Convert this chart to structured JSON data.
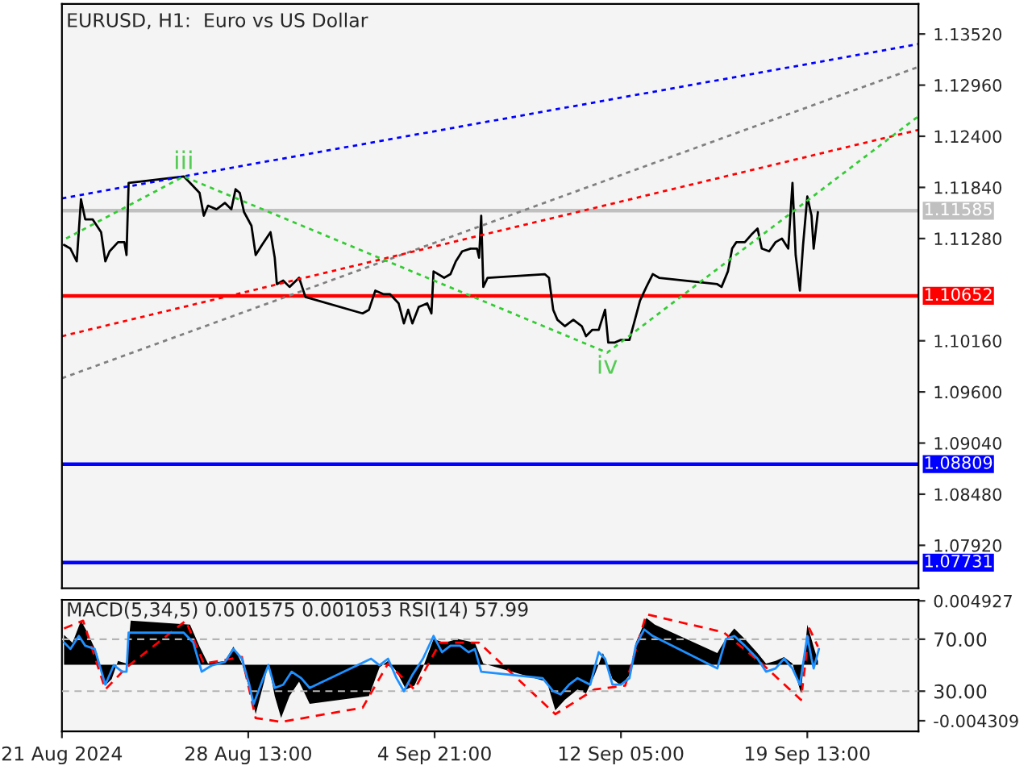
{
  "chart_data": [
    {
      "type": "line",
      "title": "EURUSD, H1:  Euro vs US Dollar",
      "tick_labels": "y",
      "xlim": [
        "2024-08-21T05:00",
        "2024-09-23T22:00"
      ],
      "ylim": [
        1.0745,
        1.1385
      ],
      "yticks": [
        {
          "value": 1.1352,
          "label": "1.13520"
        },
        {
          "value": 1.1296,
          "label": "1.12960"
        },
        {
          "value": 1.124,
          "label": "1.12400"
        },
        {
          "value": 1.1184,
          "label": "1.11840"
        },
        {
          "value": 1.1128,
          "label": "1.11280"
        },
        {
          "value": 1.1016,
          "label": "1.10160"
        },
        {
          "value": 1.096,
          "label": "1.09600"
        },
        {
          "value": 1.0904,
          "label": "1.09040"
        },
        {
          "value": 1.0848,
          "label": "1.08480"
        },
        {
          "value": 1.0792,
          "label": "1.07920"
        }
      ],
      "series": [
        {
          "color": "#000000",
          "line_style": "solid",
          "x": [
            "2024-08-21T07:00",
            "2024-08-21T13:00",
            "2024-08-21T19:00",
            "2024-08-21T23:00",
            "2024-08-22T03:00",
            "2024-08-22T10:00",
            "2024-08-22T14:00",
            "2024-08-22T18:00",
            "2024-08-22T22:00",
            "2024-08-23T02:00",
            "2024-08-23T10:00",
            "2024-08-23T16:00",
            "2024-08-23T18:00",
            "2024-08-23T20:00",
            "2024-08-26T00:00",
            "2024-08-26T06:00",
            "2024-08-26T15:00",
            "2024-08-26T19:00",
            "2024-08-26T23:00",
            "2024-08-27T07:00",
            "2024-08-27T15:00",
            "2024-08-27T21:00",
            "2024-08-28T01:00",
            "2024-08-28T05:00",
            "2024-08-28T09:00",
            "2024-08-28T16:00",
            "2024-08-28T20:00",
            "2024-08-29T02:00",
            "2024-08-29T10:00",
            "2024-08-29T14:00",
            "2024-08-29T16:00",
            "2024-08-29T22:00",
            "2024-08-30T04:00",
            "2024-08-30T13:00",
            "2024-08-30T19:00",
            "2024-09-02T01:00",
            "2024-09-02T07:00",
            "2024-09-02T13:00",
            "2024-09-02T21:00",
            "2024-09-03T03:00",
            "2024-09-03T11:00",
            "2024-09-03T16:00",
            "2024-09-03T20:00",
            "2024-09-04T00:00",
            "2024-09-04T06:00",
            "2024-09-04T14:00",
            "2024-09-04T18:00",
            "2024-09-04T20:00",
            "2024-09-05T06:00",
            "2024-09-05T12:00",
            "2024-09-05T17:00",
            "2024-09-05T23:00",
            "2024-09-06T07:00",
            "2024-09-06T13:00",
            "2024-09-06T15:00",
            "2024-09-06T17:00",
            "2024-09-06T19:00",
            "2024-09-06T23:00",
            "2024-09-09T05:00",
            "2024-09-09T09:00",
            "2024-09-09T13:00",
            "2024-09-09T17:00",
            "2024-09-10T00:00",
            "2024-09-10T08:00",
            "2024-09-10T16:00",
            "2024-09-10T20:00",
            "2024-09-11T02:00",
            "2024-09-11T08:00",
            "2024-09-11T14:00",
            "2024-09-11T17:00",
            "2024-09-11T23:00",
            "2024-09-12T05:00",
            "2024-09-12T13:00",
            "2024-09-12T17:00",
            "2024-09-12T23:00",
            "2024-09-13T05:00",
            "2024-09-13T11:00",
            "2024-09-13T17:00",
            "2024-09-16T00:00",
            "2024-09-16T04:00",
            "2024-09-16T10:00",
            "2024-09-16T14:00",
            "2024-09-16T18:00",
            "2024-09-17T02:00",
            "2024-09-17T08:00",
            "2024-09-17T14:00",
            "2024-09-17T18:00",
            "2024-09-18T01:00",
            "2024-09-18T07:00",
            "2024-09-18T13:00",
            "2024-09-18T19:00",
            "2024-09-18T23:00",
            "2024-09-19T02:00",
            "2024-09-19T06:00",
            "2024-09-19T09:00",
            "2024-09-19T13:00",
            "2024-09-19T17:00",
            "2024-09-19T19:00",
            "2024-09-19T23:00"
          ],
          "values": [
            1.1121,
            1.1117,
            1.1103,
            1.1171,
            1.1149,
            1.1149,
            1.1142,
            1.1135,
            1.1103,
            1.1114,
            1.1124,
            1.1124,
            1.111,
            1.1189,
            1.1196,
            1.1189,
            1.1178,
            1.1153,
            1.1164,
            1.116,
            1.1167,
            1.116,
            1.1182,
            1.1178,
            1.1157,
            1.1142,
            1.111,
            1.1121,
            1.1135,
            1.1107,
            1.1078,
            1.1082,
            1.1075,
            1.1085,
            1.1064,
            1.1046,
            1.105,
            1.1071,
            1.1067,
            1.1067,
            1.1057,
            1.1035,
            1.105,
            1.1035,
            1.1053,
            1.1057,
            1.1046,
            1.1092,
            1.1085,
            1.1089,
            1.1103,
            1.1114,
            1.1117,
            1.1117,
            1.1107,
            1.1153,
            1.1075,
            1.1085,
            1.1089,
            1.1085,
            1.105,
            1.1039,
            1.1032,
            1.1039,
            1.1032,
            1.1021,
            1.1028,
            1.1028,
            1.105,
            1.1014,
            1.1014,
            1.1017,
            1.1017,
            1.1034,
            1.106,
            1.1075,
            1.1089,
            1.1085,
            1.1078,
            1.1075,
            1.1092,
            1.1117,
            1.1124,
            1.1124,
            1.1132,
            1.1139,
            1.1117,
            1.1114,
            1.1124,
            1.1128,
            1.1117,
            1.1189,
            1.111,
            1.1071,
            1.1121,
            1.1174,
            1.1153,
            1.1117,
            1.1157
          ]
        },
        {
          "color": "#0000ff",
          "line_style": "dotted",
          "x": [
            "2024-08-21T05:00",
            "2024-09-23T22:00"
          ],
          "values": [
            1.1172,
            1.1341
          ]
        },
        {
          "color": "#808080",
          "line_style": "dotted",
          "x": [
            "2024-08-21T05:00",
            "2024-09-23T22:00"
          ],
          "values": [
            1.0975,
            1.1316
          ]
        },
        {
          "color": "#ff0000",
          "line_style": "dotted",
          "x": [
            "2024-08-21T05:00",
            "2024-09-23T22:00"
          ],
          "values": [
            1.1021,
            1.1247
          ]
        },
        {
          "color": "#33cc33",
          "line_style": "dotted",
          "x": [
            "2024-08-21T09:00",
            "2024-08-26T00:00",
            "2024-09-11T16:00",
            "2024-09-23T22:00"
          ],
          "values": [
            1.1128,
            1.1196,
            1.1003,
            1.1262
          ]
        }
      ],
      "ref_lines": [
        {
          "axis": "y",
          "value": 1.11585,
          "label": "1.11585",
          "color": "#c0c0c0",
          "line_style": "solid"
        },
        {
          "axis": "y",
          "value": 1.10652,
          "label": "1.10652",
          "color": "#ff0000",
          "line_style": "solid"
        },
        {
          "axis": "y",
          "value": 1.08809,
          "label": "1.08809",
          "color": "#0000ff",
          "line_style": "solid"
        },
        {
          "axis": "y",
          "value": 1.07731,
          "label": "1.07731",
          "color": "#0000ff",
          "line_style": "solid"
        }
      ],
      "annotations": [
        {
          "text": "iii",
          "x": "2024-08-26T00:00",
          "y": 1.1196
        },
        {
          "text": "iv",
          "x": "2024-09-11T16:00",
          "y": 1.1003
        }
      ]
    },
    {
      "type": "line",
      "title": "MACD(5,34,5) 0.001575 0.001053 RSI(14) 57.99",
      "xlim": [
        "2024-08-21T05:00",
        "2024-09-23T22:00"
      ],
      "ylim": [
        -0.00513,
        0.005005
      ],
      "y2lim": [
        -1,
        100.3
      ],
      "xticks": [
        {
          "value": "2024-08-21T05:00",
          "label": "21 Aug 2024"
        },
        {
          "value": "2024-08-28T13:00",
          "label": "28 Aug 13:00"
        },
        {
          "value": "2024-09-04T21:00",
          "label": "4 Sep 21:00"
        },
        {
          "value": "2024-09-12T05:00",
          "label": "12 Sep 05:00"
        },
        {
          "value": "2024-09-19T13:00",
          "label": "19 Sep 13:00"
        }
      ],
      "yticks": [
        {
          "value": 0.004927,
          "label": "0.004927"
        },
        {
          "value": -0.004309,
          "label": "-0.004309"
        }
      ],
      "y2ticks": [
        {
          "value": 70,
          "label": "70.00"
        },
        {
          "value": 30,
          "label": "30.00"
        }
      ],
      "series": [
        {
          "type": "area",
          "color": "#000000",
          "x": [
            "2024-08-21T07:00",
            "2024-08-21T15:00",
            "2024-08-21T23:00",
            "2024-08-22T05:00",
            "2024-08-22T14:00",
            "2024-08-22T22:00",
            "2024-08-23T04:00",
            "2024-08-23T10:00",
            "2024-08-23T18:00",
            "2024-08-23T22:00",
            "2024-08-26T06:00",
            "2024-08-26T15:00",
            "2024-08-26T23:00",
            "2024-08-27T15:00",
            "2024-08-27T23:00",
            "2024-08-28T07:00",
            "2024-08-28T16:00",
            "2024-08-28T20:00",
            "2024-08-29T04:00",
            "2024-08-29T08:00",
            "2024-08-29T14:00",
            "2024-08-29T20:00",
            "2024-08-30T04:00",
            "2024-08-30T13:00",
            "2024-08-30T23:00",
            "2024-09-02T07:00",
            "2024-09-02T17:00",
            "2024-09-03T01:00",
            "2024-09-03T09:00",
            "2024-09-03T18:00",
            "2024-09-04T02:00",
            "2024-09-04T10:00",
            "2024-09-04T20:00",
            "2024-09-05T06:00",
            "2024-09-05T19:00",
            "2024-09-06T11:00",
            "2024-09-06T19:00",
            "2024-09-09T07:00",
            "2024-09-09T15:00",
            "2024-09-10T00:00",
            "2024-09-10T12:00",
            "2024-09-10T20:00",
            "2024-09-11T04:00",
            "2024-09-11T12:00",
            "2024-09-11T21:00",
            "2024-09-12T05:00",
            "2024-09-12T13:00",
            "2024-09-12T19:00",
            "2024-09-13T05:00",
            "2024-09-13T13:00",
            "2024-09-16T00:00",
            "2024-09-16T08:00",
            "2024-09-16T16:00",
            "2024-09-17T02:00",
            "2024-09-17T14:00",
            "2024-09-17T22:00",
            "2024-09-18T07:00",
            "2024-09-18T15:00",
            "2024-09-18T23:00",
            "2024-09-19T07:00",
            "2024-09-19T13:00",
            "2024-09-19T19:00",
            "2024-09-19T23:00"
          ],
          "values": [
            0.0023,
            0.0017,
            0.0034,
            0.0025,
            0.0009,
            -0.0016,
            -0.0011,
            0.0003,
            0.0001,
            0.0034,
            0.0031,
            0.0014,
            0.0001,
            0.0003,
            0.0014,
            0.0001,
            -0.0024,
            -0.0038,
            -0.0013,
            0.0001,
            -0.0024,
            -0.0041,
            -0.0024,
            -0.0013,
            -0.003,
            -0.0024,
            -0.0002,
            0.0003,
            -0.0005,
            -0.0019,
            -0.0016,
            -0.0002,
            0.002,
            0.0017,
            0.002,
            0.0017,
            0.0001,
            -0.0013,
            -0.0035,
            -0.0027,
            -0.0019,
            -0.0022,
            -0.0008,
            0.0009,
            -0.0011,
            -0.0016,
            -0.0008,
            0.0017,
            0.0036,
            0.0031,
            0.0009,
            0.002,
            0.0028,
            0.002,
            0.0009,
            0.0001,
            0.0003,
            0.0006,
            0.0001,
            -0.0022,
            0.0031,
            0.0014,
            0.0003
          ]
        },
        {
          "color": "#ff0000",
          "line_style": "dashed",
          "x": [
            "2024-08-21T07:00",
            "2024-08-22T01:00",
            "2024-08-22T22:00",
            "2024-08-23T18:00",
            "2024-08-26T02:00",
            "2024-08-26T19:00",
            "2024-08-28T07:00",
            "2024-08-28T20:00",
            "2024-08-29T20:00",
            "2024-09-02T01:00",
            "2024-09-03T01:00",
            "2024-09-04T02:00",
            "2024-09-05T02:00",
            "2024-09-06T15:00",
            "2024-09-09T15:00",
            "2024-09-11T04:00",
            "2024-09-12T09:00",
            "2024-09-13T05:00",
            "2024-09-16T06:00",
            "2024-09-17T18:00",
            "2024-09-19T07:00",
            "2024-09-19T15:00",
            "2024-09-19T23:00"
          ],
          "values": [
            0.0028,
            0.0034,
            -0.0019,
            -0.0002,
            0.0034,
            0.0001,
            0.0006,
            -0.0041,
            -0.0044,
            -0.0033,
            0.0001,
            -0.0019,
            0.0017,
            0.0017,
            -0.0038,
            -0.0019,
            -0.0016,
            0.0039,
            0.0025,
            0.0001,
            -0.0027,
            0.0028,
            0.0014
          ]
        },
        {
          "color": "#1e90ff",
          "axis": "y2",
          "line_style": "solid",
          "x": [
            "2024-08-21T07:00",
            "2024-08-21T13:00",
            "2024-08-21T21:00",
            "2024-08-22T03:00",
            "2024-08-22T12:00",
            "2024-08-22T22:00",
            "2024-08-23T06:00",
            "2024-08-23T14:00",
            "2024-08-23T18:00",
            "2024-08-23T20:00",
            "2024-08-26T00:00",
            "2024-08-26T09:00",
            "2024-08-26T17:00",
            "2024-08-27T03:00",
            "2024-08-27T15:00",
            "2024-08-27T23:00",
            "2024-08-28T07:00",
            "2024-08-28T14:00",
            "2024-08-28T18:00",
            "2024-08-29T02:00",
            "2024-08-29T08:00",
            "2024-08-29T14:00",
            "2024-08-29T22:00",
            "2024-08-30T06:00",
            "2024-08-30T15:00",
            "2024-08-30T23:00",
            "2024-09-02T09:00",
            "2024-09-02T17:00",
            "2024-09-03T01:00",
            "2024-09-03T09:00",
            "2024-09-03T16:00",
            "2024-09-04T00:00",
            "2024-09-04T10:00",
            "2024-09-04T20:00",
            "2024-09-05T04:00",
            "2024-09-05T12:00",
            "2024-09-05T21:00",
            "2024-09-06T05:00",
            "2024-09-06T11:00",
            "2024-09-06T17:00",
            "2024-09-09T03:00",
            "2024-09-09T13:00",
            "2024-09-09T20:00",
            "2024-09-10T04:00",
            "2024-09-10T12:00",
            "2024-09-11T00:00",
            "2024-09-11T08:00",
            "2024-09-11T14:00",
            "2024-09-11T21:00",
            "2024-09-12T05:00",
            "2024-09-12T13:00",
            "2024-09-12T19:00",
            "2024-09-13T03:00",
            "2024-09-13T11:00",
            "2024-09-16T00:00",
            "2024-09-16T08:00",
            "2024-09-16T16:00",
            "2024-09-17T02:00",
            "2024-09-17T14:00",
            "2024-09-17T22:00",
            "2024-09-18T07:00",
            "2024-09-18T15:00",
            "2024-09-18T23:00",
            "2024-09-19T06:00",
            "2024-09-19T13:00",
            "2024-09-19T17:00",
            "2024-09-19T19:00",
            "2024-09-20T00:00"
          ],
          "values": [
            67.5,
            62.5,
            72.5,
            65,
            62.5,
            35,
            50,
            45,
            45,
            75,
            75,
            67.5,
            45,
            50,
            52.5,
            62.5,
            55,
            35,
            20,
            37.5,
            50,
            32.5,
            35,
            45,
            40,
            32.5,
            55,
            50,
            55,
            40,
            30,
            42.5,
            55,
            72.5,
            60,
            65,
            65,
            60,
            62.5,
            45,
            40,
            30,
            27.5,
            35,
            40,
            35,
            60,
            55,
            35,
            35,
            40,
            65,
            77.5,
            72.5,
            47.5,
            70,
            72.5,
            65,
            55,
            45,
            47.5,
            55,
            47.5,
            35,
            72.5,
            55,
            47.5,
            62.5
          ]
        }
      ],
      "ref_lines": [
        {
          "axis": "y2",
          "value": 70,
          "color": "#b4b4b4",
          "line_style": "dashed"
        },
        {
          "axis": "y2",
          "value": 30,
          "color": "#b4b4b4",
          "line_style": "dashed"
        }
      ]
    }
  ]
}
